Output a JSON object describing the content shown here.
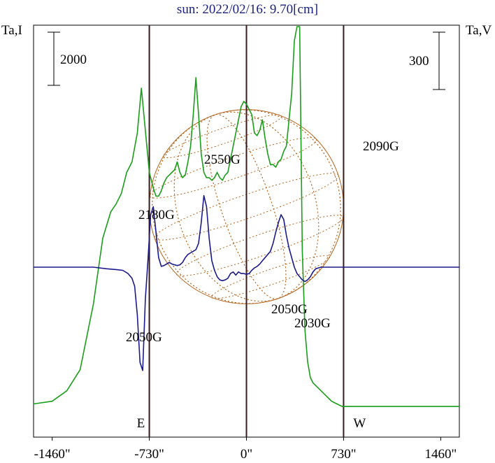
{
  "chart_data": {
    "type": "line",
    "title": "sun: 2022/02/16: 9.70[cm]",
    "left_axis_label": "Ta,I",
    "right_axis_label": "Ta,V",
    "left_scale_bar_value": "2000",
    "right_scale_bar_value": "300",
    "xlim": [
      -1600,
      1600
    ],
    "x_ticks": [
      {
        "value": -1460,
        "label": "-1460\""
      },
      {
        "value": -730,
        "label": "-730\""
      },
      {
        "value": 0,
        "label": "0\""
      },
      {
        "value": 730,
        "label": "730\""
      },
      {
        "value": 1460,
        "label": "1460\""
      }
    ],
    "limb_markers": [
      {
        "value": -730,
        "label": "E"
      },
      {
        "value": 0,
        "label": ""
      },
      {
        "value": 730,
        "label": "W"
      }
    ],
    "colors": {
      "intensity": "#1a9e1a",
      "polarization": "#1a1a8c",
      "disk": "#b5651d",
      "limb_lines": "#3a1a1a",
      "title": "#1a237e"
    },
    "series": [
      {
        "name": "Ta,I",
        "color": "#1a9e1a",
        "ylim": [
          0,
          14000
        ],
        "x": [
          -1600,
          -1460,
          -1350,
          -1250,
          -1150,
          -1080,
          -1020,
          -980,
          -940,
          -900,
          -860,
          -820,
          -790,
          -760,
          -730,
          -700,
          -680,
          -660,
          -640,
          -620,
          -600,
          -580,
          -560,
          -540,
          -520,
          -500,
          -480,
          -460,
          -440,
          -420,
          -400,
          -380,
          -360,
          -340,
          -320,
          -300,
          -280,
          -260,
          -240,
          -220,
          -200,
          -180,
          -160,
          -140,
          -120,
          -100,
          -80,
          -60,
          -40,
          -20,
          0,
          20,
          40,
          60,
          80,
          100,
          120,
          140,
          160,
          180,
          200,
          220,
          240,
          260,
          280,
          300,
          320,
          340,
          360,
          380,
          400,
          420,
          440,
          460,
          480,
          500,
          520,
          540,
          560,
          580,
          600,
          620,
          640,
          660,
          680,
          700,
          720,
          740,
          760,
          780,
          800,
          830,
          870,
          920,
          980,
          1050,
          1150,
          1250,
          1400,
          1500,
          1600
        ],
        "values": [
          200,
          300,
          700,
          1500,
          4000,
          6500,
          7500,
          7800,
          8200,
          9000,
          9400,
          10500,
          12200,
          10600,
          9000,
          8400,
          8100,
          8100,
          8300,
          8600,
          8800,
          8900,
          9000,
          9100,
          9400,
          9000,
          8800,
          8900,
          9400,
          10000,
          11200,
          12600,
          11200,
          9700,
          9000,
          8800,
          8800,
          8700,
          8800,
          9000,
          8800,
          8700,
          8900,
          9000,
          9500,
          10000,
          10500,
          11000,
          11500,
          11700,
          11600,
          11400,
          11200,
          10500,
          10400,
          10600,
          11000,
          10300,
          9700,
          9300,
          9300,
          9200,
          9400,
          9500,
          9800,
          10000,
          11000,
          12000,
          14000,
          17000,
          15000,
          6000,
          3000,
          1800,
          1200,
          1000,
          900,
          800,
          700,
          600,
          500,
          400,
          300,
          250,
          200,
          150,
          100,
          100,
          100,
          100,
          100,
          100,
          100,
          100,
          100,
          100,
          100,
          100,
          100,
          100,
          100
        ],
        "note_values_are_relative_display_units": ""
      },
      {
        "name": "Ta,V",
        "color": "#1a1a8c",
        "ylim": [
          -1100,
          1100
        ],
        "x": [
          -1600,
          -1460,
          -1300,
          -1150,
          -1050,
          -980,
          -930,
          -890,
          -860,
          -840,
          -820,
          -800,
          -780,
          -760,
          -740,
          -720,
          -700,
          -680,
          -660,
          -640,
          -620,
          -600,
          -580,
          -560,
          -540,
          -520,
          -500,
          -480,
          -460,
          -440,
          -420,
          -400,
          -380,
          -360,
          -340,
          -320,
          -300,
          -280,
          -260,
          -240,
          -220,
          -200,
          -180,
          -160,
          -140,
          -120,
          -100,
          -80,
          -60,
          -40,
          -20,
          0,
          20,
          40,
          60,
          80,
          100,
          120,
          140,
          160,
          180,
          200,
          220,
          240,
          260,
          280,
          300,
          320,
          340,
          360,
          380,
          400,
          420,
          440,
          460,
          480,
          500,
          520,
          540,
          560,
          580,
          600,
          620,
          640,
          660,
          680,
          700,
          720,
          740,
          760,
          780,
          800,
          850,
          900,
          1000,
          1100,
          1200,
          1300,
          1460,
          1600
        ],
        "values": [
          0,
          0,
          0,
          0,
          -10,
          -15,
          -20,
          -40,
          -70,
          -120,
          -300,
          -600,
          -650,
          -200,
          50,
          330,
          380,
          220,
          60,
          5,
          10,
          20,
          30,
          20,
          15,
          10,
          15,
          30,
          60,
          80,
          90,
          100,
          110,
          150,
          280,
          450,
          380,
          180,
          40,
          -20,
          -60,
          -80,
          -85,
          -80,
          -70,
          -40,
          -30,
          -50,
          -30,
          -40,
          -40,
          -45,
          -40,
          -20,
          -5,
          5,
          20,
          40,
          60,
          80,
          100,
          150,
          220,
          280,
          330,
          300,
          200,
          120,
          60,
          0,
          -40,
          -60,
          -80,
          -90,
          -80,
          -60,
          -30,
          -10,
          -5,
          0,
          0,
          0,
          0,
          0,
          0,
          0,
          0,
          0,
          0,
          0,
          0,
          0,
          0,
          0,
          0,
          0,
          0,
          0,
          0,
          0
        ]
      }
    ],
    "annotations": [
      {
        "text": "2180G",
        "x": -1150,
        "y_series": "Ta,I"
      },
      {
        "text": "2550G",
        "x": -140,
        "y_series": "Ta,I"
      },
      {
        "text": "2090G",
        "x": 950,
        "y_series": "Ta,I"
      },
      {
        "text": "2050G",
        "x": -720,
        "y_series": "Ta,V"
      },
      {
        "text": "2050G",
        "x": 150,
        "y_series": "Ta,V"
      },
      {
        "text": "2030G",
        "x": 330,
        "y_series": "Ta,V"
      }
    ]
  }
}
